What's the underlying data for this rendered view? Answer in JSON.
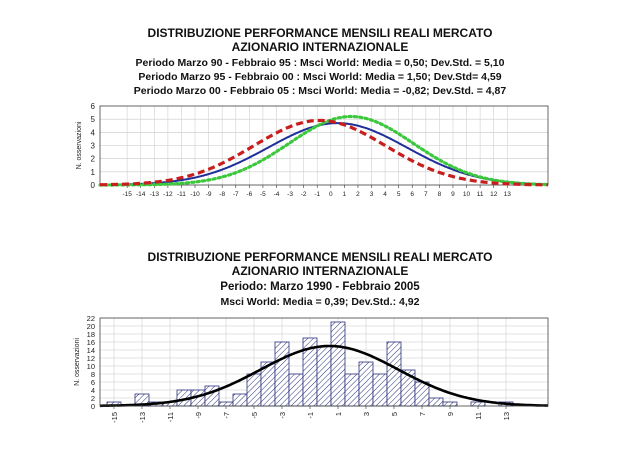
{
  "chart_data": [
    {
      "type": "line",
      "title": "DISTRIBUZIONE PERFORMANCE MENSILI REALI MERCATO AZIONARIO INTERNAZIONALE",
      "subtitles": [
        "Periodo Marzo 90 - Febbraio 95 : Msci World: Media = 0,50; Dev.Std. = 5,10",
        "Periodo Marzo 95 - Febbraio 00 : Msci World: Media = 1,50; Dev.Std= 4,59",
        "Periodo Marzo 00 - Febbraio 05 : Msci World: Media = -0,82; Dev.Std. = 4,87"
      ],
      "ylabel": "N. osservazioni",
      "xlabel": "",
      "xlim": [
        -17,
        16
      ],
      "ylim": [
        0,
        6
      ],
      "xticks": [
        "-15",
        "-14",
        "-13",
        "-12",
        "-11",
        "-10",
        "-9",
        "-8",
        "-7",
        "-6",
        "-5",
        "-4",
        "-3",
        "-2",
        "-1",
        "0",
        "1",
        "2",
        "3",
        "4",
        "5",
        "6",
        "7",
        "8",
        "9",
        "10",
        "11",
        "12",
        "13"
      ],
      "yticks": [
        "0",
        "1",
        "2",
        "3",
        "4",
        "5",
        "6"
      ],
      "grid": true,
      "series": [
        {
          "mean": 0.5,
          "std": 5.1,
          "peak": 4.7,
          "color": "#1f2e9a",
          "style": "solid"
        },
        {
          "mean": 1.5,
          "std": 4.59,
          "peak": 5.2,
          "color": "#3cc83c",
          "style": "dotted"
        },
        {
          "mean": -0.82,
          "std": 4.87,
          "peak": 4.9,
          "color": "#c81e1e",
          "style": "dashed"
        }
      ]
    },
    {
      "type": "bar",
      "title": "DISTRIBUZIONE PERFORMANCE MENSILI REALI MERCATO AZIONARIO INTERNAZIONALE",
      "subtitles": [
        "Periodo: Marzo 1990 - Febbraio 2005",
        "Msci World: Media = 0,39; Dev.Std.: 4,92"
      ],
      "ylabel": "N. osservazioni",
      "xlabel": "",
      "xlim": [
        -16,
        16
      ],
      "ylim": [
        0,
        22
      ],
      "xticks": [
        "-15",
        "-13",
        "-11",
        "-9",
        "-7",
        "-5",
        "-3",
        "-1",
        "1",
        "3",
        "5",
        "7",
        "9",
        "11",
        "13"
      ],
      "yticks": [
        "0",
        "2",
        "4",
        "6",
        "8",
        "10",
        "12",
        "14",
        "16",
        "18",
        "20",
        "22"
      ],
      "grid": true,
      "bins": [
        {
          "x": -15,
          "count": 1
        },
        {
          "x": -14,
          "count": 0
        },
        {
          "x": -13,
          "count": 3
        },
        {
          "x": -12,
          "count": 1
        },
        {
          "x": -11,
          "count": 1
        },
        {
          "x": -10,
          "count": 4
        },
        {
          "x": -9,
          "count": 4
        },
        {
          "x": -8,
          "count": 5
        },
        {
          "x": -7,
          "count": 1
        },
        {
          "x": -6,
          "count": 3
        },
        {
          "x": -5,
          "count": 8
        },
        {
          "x": -4,
          "count": 11
        },
        {
          "x": -3,
          "count": 16
        },
        {
          "x": -2,
          "count": 8
        },
        {
          "x": -1,
          "count": 17
        },
        {
          "x": 0,
          "count": 15
        },
        {
          "x": 1,
          "count": 21
        },
        {
          "x": 2,
          "count": 8
        },
        {
          "x": 3,
          "count": 11
        },
        {
          "x": 4,
          "count": 8
        },
        {
          "x": 5,
          "count": 16
        },
        {
          "x": 6,
          "count": 9
        },
        {
          "x": 7,
          "count": 6
        },
        {
          "x": 8,
          "count": 2
        },
        {
          "x": 9,
          "count": 1
        },
        {
          "x": 10,
          "count": 0
        },
        {
          "x": 11,
          "count": 1
        },
        {
          "x": 12,
          "count": 0
        },
        {
          "x": 13,
          "count": 1
        }
      ],
      "fit_curve": {
        "mean": 0.39,
        "std": 4.92,
        "peak": 15.0,
        "color": "#000000"
      }
    }
  ]
}
